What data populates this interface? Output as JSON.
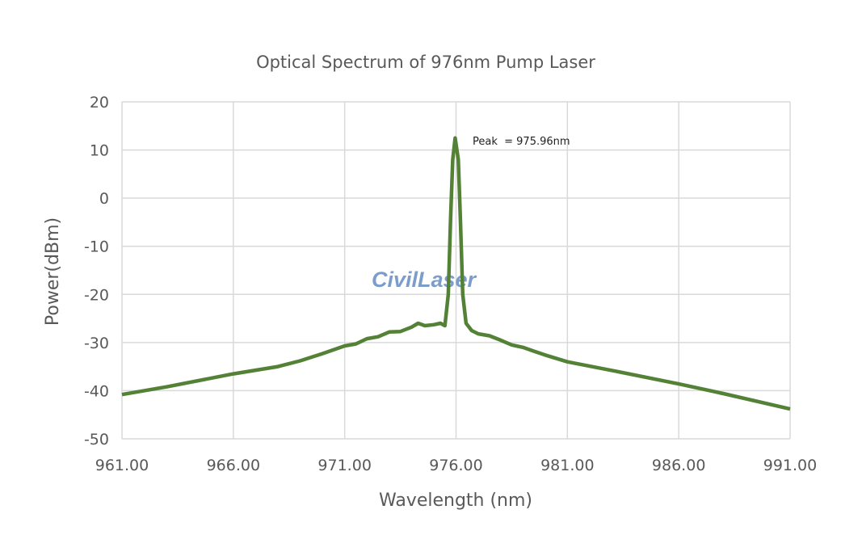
{
  "chart_data": {
    "type": "line",
    "title": "Optical Spectrum of 976nm Pump Laser",
    "xlabel": "Wavelength (nm)",
    "ylabel": "Power(dBm)",
    "xlim": [
      961,
      991
    ],
    "ylim": [
      -50,
      20
    ],
    "xticks": [
      "961.00",
      "966.00",
      "971.00",
      "976.00",
      "981.00",
      "986.00",
      "991.00"
    ],
    "yticks": [
      "20",
      "10",
      "0",
      "-10",
      "-20",
      "-30",
      "-40",
      "-50"
    ],
    "grid": true,
    "line_color": "#538135",
    "annotation": "Peak  = 975.96nm",
    "watermark": "CivilLaser",
    "series": [
      {
        "x": [
          961,
          963,
          966,
          968,
          969,
          970,
          971,
          971.5,
          972,
          972.5,
          973,
          973.5,
          974,
          974.3,
          974.6,
          975,
          975.3,
          975.5,
          975.65,
          975.75,
          975.85,
          975.96,
          976.1,
          976.2,
          976.3,
          976.45,
          976.7,
          977,
          977.5,
          978,
          978.5,
          979,
          979.5,
          980,
          981,
          983,
          986,
          988,
          991
        ],
        "y": [
          -40.8,
          -39.2,
          -36.5,
          -35,
          -33.8,
          -32.3,
          -30.7,
          -30.3,
          -29.2,
          -28.8,
          -27.8,
          -27.7,
          -26.8,
          -26,
          -26.5,
          -26.3,
          -26,
          -26.5,
          -20,
          -5,
          8,
          12.5,
          8,
          -5,
          -20,
          -26,
          -27.5,
          -28.2,
          -28.6,
          -29.5,
          -30.5,
          -31,
          -31.8,
          -32.6,
          -34,
          -35.8,
          -38.6,
          -40.6,
          -43.8
        ]
      }
    ]
  }
}
